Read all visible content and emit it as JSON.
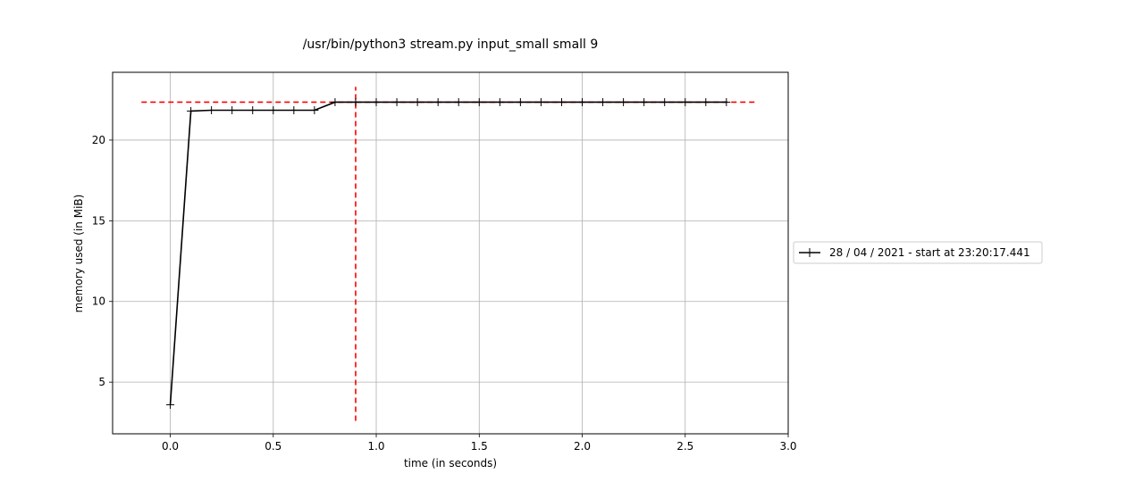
{
  "chart_data": {
    "type": "line",
    "title": "/usr/bin/python3 stream.py input_small small 9",
    "xlabel": "time (in seconds)",
    "ylabel": "memory used (in MiB)",
    "xlim": [
      -0.28,
      3.0
    ],
    "ylim": [
      1.8,
      24.2
    ],
    "xticks": [
      0.0,
      0.5,
      1.0,
      1.5,
      2.0,
      2.5,
      3.0
    ],
    "xtick_labels": [
      "0.0",
      "0.5",
      "1.0",
      "1.5",
      "2.0",
      "2.5",
      "3.0"
    ],
    "yticks": [
      5,
      10,
      15,
      20
    ],
    "ytick_labels": [
      "5",
      "10",
      "15",
      "20"
    ],
    "grid": true,
    "legend_position": "outside-right",
    "series": [
      {
        "name": "28 / 04 / 2021 - start at 23:20:17.441",
        "color": "#000000",
        "marker": "plus",
        "x": [
          0.0,
          0.1,
          0.2,
          0.3,
          0.4,
          0.5,
          0.6,
          0.7,
          0.8,
          0.9,
          1.0,
          1.1,
          1.2,
          1.3,
          1.4,
          1.5,
          1.6,
          1.7,
          1.8,
          1.9,
          2.0,
          2.1,
          2.2,
          2.3,
          2.4,
          2.5,
          2.6,
          2.7
        ],
        "y": [
          3.6,
          21.8,
          21.85,
          21.85,
          21.85,
          21.85,
          21.85,
          21.85,
          22.35,
          22.35,
          22.35,
          22.35,
          22.35,
          22.35,
          22.35,
          22.35,
          22.35,
          22.35,
          22.35,
          22.35,
          22.35,
          22.35,
          22.35,
          22.35,
          22.35,
          22.35,
          22.35,
          22.35
        ]
      }
    ],
    "reference_lines": [
      {
        "orientation": "horizontal",
        "y": 22.35,
        "x_range": [
          -0.14,
          2.85
        ],
        "color": "#ff0000",
        "style": "dashed"
      },
      {
        "orientation": "vertical",
        "x": 0.9,
        "y_range": [
          2.6,
          23.3
        ],
        "color": "#ff0000",
        "style": "dashed"
      }
    ]
  }
}
